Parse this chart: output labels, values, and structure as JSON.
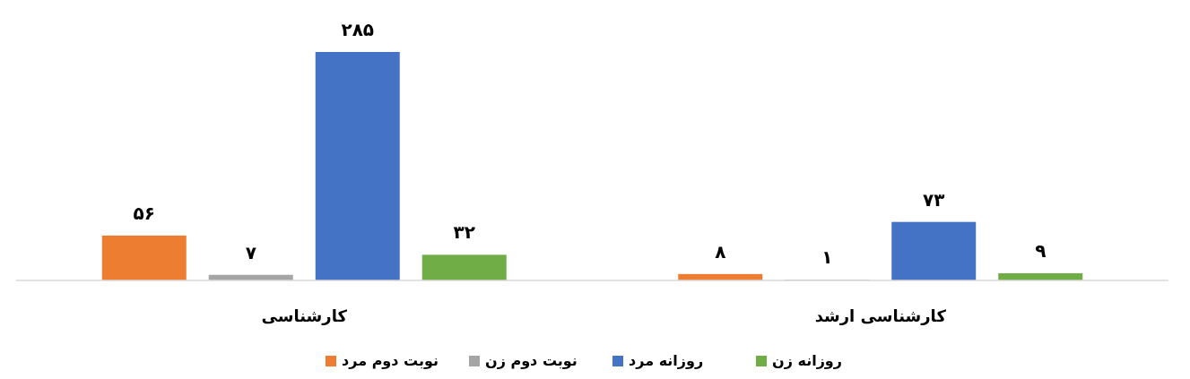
{
  "chart_data": {
    "type": "bar",
    "categories": [
      "کارشناسی",
      "کارشناسی ارشد"
    ],
    "series": [
      {
        "name": "نوبت دوم مرد",
        "color": "#ed7d31",
        "values": [
          56,
          8
        ],
        "value_labels": [
          "۵۶",
          "۸"
        ]
      },
      {
        "name": "نوبت دوم زن",
        "color": "#a5a5a5",
        "values": [
          7,
          1
        ],
        "value_labels": [
          "۷",
          "۱"
        ]
      },
      {
        "name": "روزانه مرد",
        "color": "#4472c4",
        "values": [
          285,
          73
        ],
        "value_labels": [
          "۲۸۵",
          "۷۳"
        ]
      },
      {
        "name": "روزانه زن",
        "color": "#70ad47",
        "values": [
          32,
          9
        ],
        "value_labels": [
          "۳۲",
          "۹"
        ]
      }
    ],
    "legend": "bottom"
  }
}
